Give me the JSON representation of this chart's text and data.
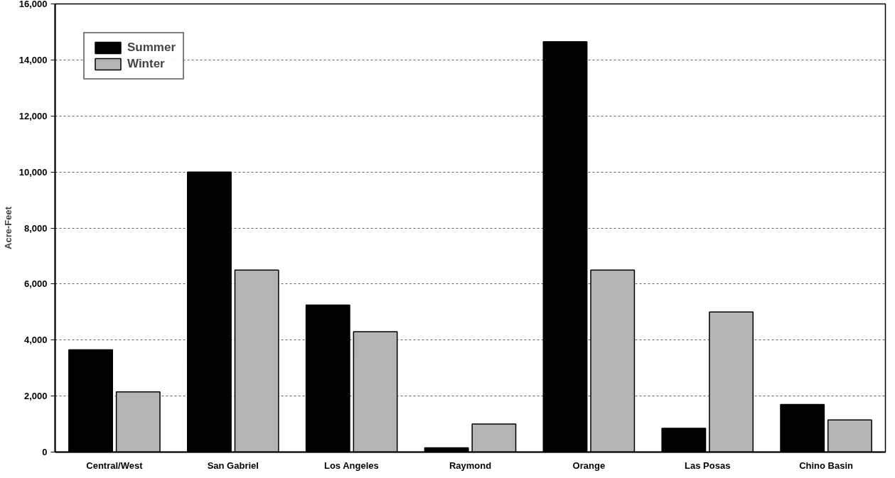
{
  "chart_data": {
    "type": "bar",
    "ylabel": "Acre-Feet",
    "categories": [
      "Central/West",
      "San Gabriel",
      "Los Angeles",
      "Raymond",
      "Orange",
      "Las Posas",
      "Chino Basin"
    ],
    "series": [
      {
        "name": "Summer",
        "color": "#000000",
        "values": [
          3650,
          10000,
          5250,
          150,
          14650,
          850,
          1700
        ]
      },
      {
        "name": "Winter",
        "color": "#b4b4b4",
        "values": [
          2150,
          6500,
          4300,
          1000,
          6500,
          5000,
          1150
        ]
      }
    ],
    "ylim": [
      0,
      16000
    ],
    "yticks": [
      {
        "value": 0,
        "label": "0"
      },
      {
        "value": 2000,
        "label": "2,000"
      },
      {
        "value": 4000,
        "label": "4,000"
      },
      {
        "value": 6000,
        "label": "6,000"
      },
      {
        "value": 8000,
        "label": "8,000"
      },
      {
        "value": 10000,
        "label": "10,000"
      },
      {
        "value": 12000,
        "label": "12,000"
      },
      {
        "value": 14000,
        "label": "14,000"
      },
      {
        "value": 16000,
        "label": "16,000"
      }
    ],
    "grid": "y",
    "legend": "top left"
  }
}
